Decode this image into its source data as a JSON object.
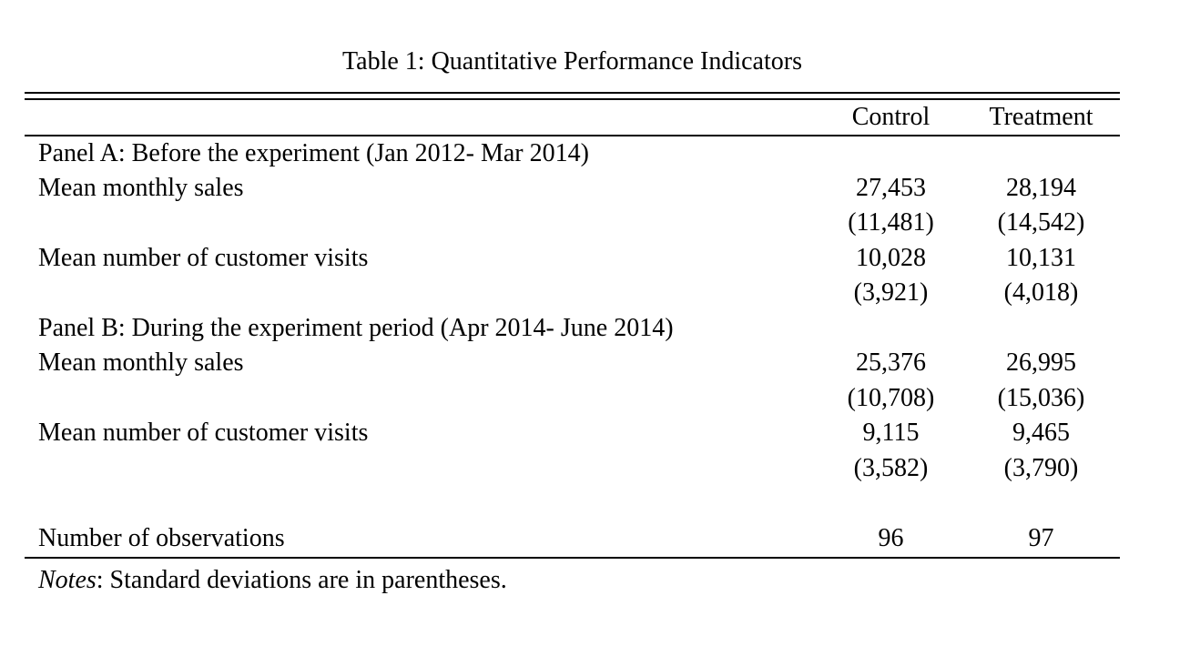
{
  "title": "Table 1: Quantitative Performance Indicators",
  "table": {
    "columns": [
      "",
      "Control",
      "Treatment"
    ],
    "rows": [
      {
        "type": "panel",
        "label": "Panel A: Before the experiment (Jan 2012- Mar 2014)",
        "control": "",
        "treatment": ""
      },
      {
        "type": "data",
        "label": "Mean monthly sales",
        "control": "27,453",
        "treatment": "28,194"
      },
      {
        "type": "data",
        "label": "",
        "control": "(11,481)",
        "treatment": "(14,542)"
      },
      {
        "type": "data",
        "label": "Mean number of customer visits",
        "control": "10,028",
        "treatment": "10,131"
      },
      {
        "type": "data",
        "label": "",
        "control": "(3,921)",
        "treatment": "(4,018)"
      },
      {
        "type": "panel",
        "label": "Panel B: During the experiment period (Apr 2014- June 2014)",
        "control": "",
        "treatment": ""
      },
      {
        "type": "data",
        "label": "Mean monthly sales",
        "control": "25,376",
        "treatment": "26,995"
      },
      {
        "type": "data",
        "label": "",
        "control": "(10,708)",
        "treatment": "(15,036)"
      },
      {
        "type": "data",
        "label": "Mean number of customer visits",
        "control": "9,115",
        "treatment": "9,465"
      },
      {
        "type": "data",
        "label": "",
        "control": "(3,582)",
        "treatment": "(3,790)"
      },
      {
        "type": "spacer",
        "label": "",
        "control": "",
        "treatment": ""
      },
      {
        "type": "data",
        "label": "Number of observations",
        "control": "96",
        "treatment": "97"
      }
    ]
  },
  "notes": {
    "label": "Notes",
    "text": ": Standard deviations are in parentheses."
  }
}
